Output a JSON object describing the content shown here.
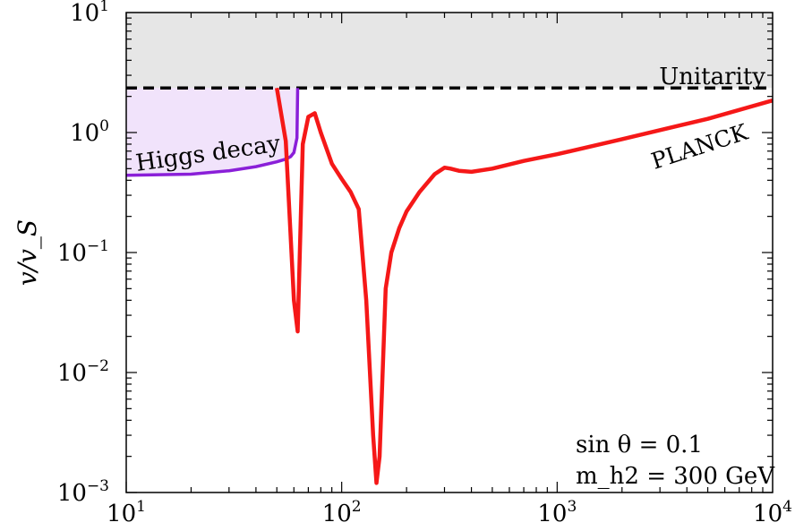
{
  "chart_data": {
    "type": "line",
    "xscale": "log",
    "yscale": "log",
    "xlim": [
      10,
      10000
    ],
    "ylim": [
      0.001,
      10
    ],
    "xlabel": "",
    "ylabel": "v/v_S",
    "x_ticks": [
      {
        "base": "10",
        "exp": "1"
      },
      {
        "base": "10",
        "exp": "2"
      },
      {
        "base": "10",
        "exp": "3"
      },
      {
        "base": "10",
        "exp": "4"
      }
    ],
    "y_ticks": [
      {
        "base": "10",
        "exp": "−3"
      },
      {
        "base": "10",
        "exp": "−2"
      },
      {
        "base": "10",
        "exp": "−1"
      },
      {
        "base": "10",
        "exp": "0"
      },
      {
        "base": "10",
        "exp": "1"
      }
    ],
    "unitarity": {
      "label": "Unitarity",
      "y": 2.35,
      "color": "#000000",
      "shade": "#e6e6e6"
    },
    "higgs_decay": {
      "label": "Higgs decay",
      "color": "#8a1fd8",
      "fill": "#f1e3fb",
      "x": [
        10,
        20,
        30,
        40,
        50,
        55,
        58,
        60,
        62,
        62.5
      ],
      "y": [
        0.44,
        0.45,
        0.48,
        0.52,
        0.57,
        0.6,
        0.63,
        0.68,
        0.9,
        2.35
      ]
    },
    "planck": {
      "label": "PLANCK",
      "color": "#f51818",
      "x": [
        50,
        55,
        60,
        62.5,
        66,
        70,
        75,
        80,
        90,
        100,
        110,
        120,
        130,
        140,
        145,
        150,
        160,
        170,
        185,
        200,
        230,
        270,
        300,
        320,
        350,
        400,
        500,
        700,
        1000,
        2000,
        5000,
        10000
      ],
      "y": [
        2.35,
        0.85,
        0.04,
        0.022,
        0.8,
        1.35,
        1.45,
        1.0,
        0.55,
        0.41,
        0.32,
        0.23,
        0.04,
        0.003,
        0.0012,
        0.002,
        0.05,
        0.1,
        0.16,
        0.22,
        0.32,
        0.45,
        0.51,
        0.5,
        0.48,
        0.47,
        0.5,
        0.58,
        0.66,
        0.88,
        1.3,
        1.85
      ]
    },
    "params": {
      "sin_label": "sin θ = 0.1",
      "mass_label": "m_h2 = 300 GeV"
    }
  }
}
